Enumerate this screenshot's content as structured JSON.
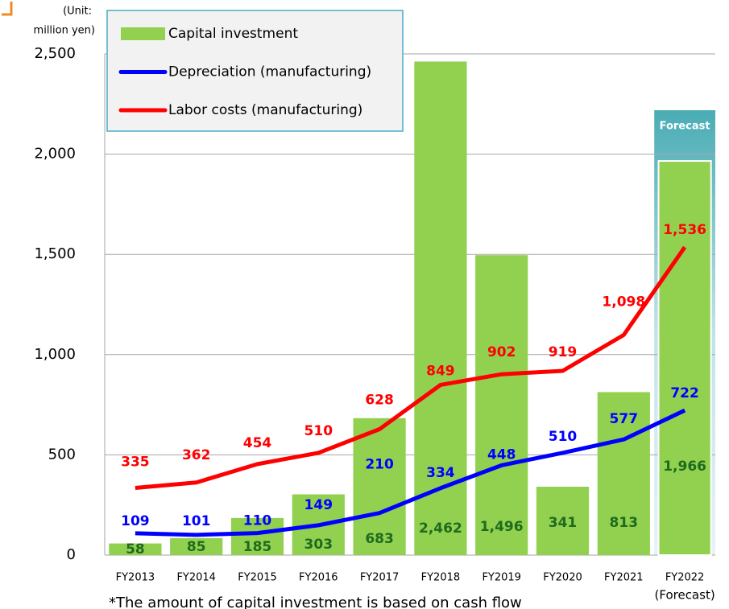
{
  "chart_data": {
    "type": "bar",
    "y_unit": [
      "(Unit:",
      "million yen)"
    ],
    "categories": [
      "FY2013",
      "FY2014",
      "FY2015",
      "FY2016",
      "FY2017",
      "FY2018",
      "FY2019",
      "FY2020",
      "FY2021",
      "FY2022"
    ],
    "forecast_note": "(Forecast)",
    "forecast_label": "Forecast",
    "footnote": "*The amount of capital investment is based on cash flow",
    "ylim": [
      0,
      2500
    ],
    "yticks": [
      0,
      500,
      {
        "value": 1000,
        "label": "1,000"
      },
      {
        "value": 1500,
        "label": "1,500"
      },
      {
        "value": 2000,
        "label": "2,000"
      },
      {
        "value": 2500,
        "label": "2,500"
      }
    ],
    "grid": true,
    "series": [
      {
        "name": "Capital investment",
        "type": "bar",
        "color": "#92d050",
        "label_color": "#1e6b1e",
        "values": [
          58,
          85,
          185,
          303,
          683,
          2462,
          1496,
          341,
          813,
          1966
        ],
        "value_labels": [
          "58",
          "85",
          "185",
          "303",
          "683",
          "2,462",
          "1,496",
          "341",
          "813",
          "1,966"
        ]
      },
      {
        "name": "Depreciation (manufacturing)",
        "type": "line",
        "color": "#0000ff",
        "values": [
          109,
          101,
          110,
          149,
          210,
          334,
          448,
          510,
          577,
          722
        ],
        "value_labels": [
          "109",
          "101",
          "110",
          "149",
          "210",
          "334",
          "448",
          "510",
          "577",
          "722"
        ]
      },
      {
        "name": "Labor costs (manufacturing)",
        "type": "line",
        "color": "#ff0000",
        "values": [
          335,
          362,
          454,
          510,
          628,
          849,
          902,
          919,
          1098,
          1536
        ],
        "value_labels": [
          "335",
          "362",
          "454",
          "510",
          "628",
          "849",
          "902",
          "919",
          "1,098",
          "1,536"
        ]
      }
    ]
  }
}
